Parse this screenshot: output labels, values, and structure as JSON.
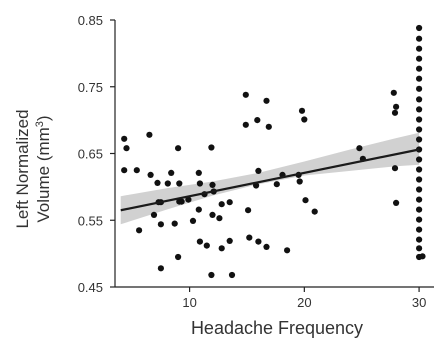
{
  "chart_data": {
    "type": "scatter",
    "title": "",
    "xlabel": "Headache Frequency",
    "ylabel_line1": "Left Normalized",
    "ylabel_line2_prefix": "Volume  (mm",
    "ylabel_sup": "3",
    "ylabel_line2_suffix": ")",
    "xlim": [
      3.5,
      31.3
    ],
    "ylim": [
      0.45,
      0.85
    ],
    "xticks": [
      10,
      20,
      30
    ],
    "xtick_labels": [
      "10",
      "20",
      "30"
    ],
    "yticks": [
      0.45,
      0.55,
      0.65,
      0.75,
      0.85
    ],
    "ytick_labels": [
      "0.45",
      "0.55",
      "0.65",
      "0.75",
      "0.85"
    ],
    "grid": false,
    "colors": {
      "points": "#111111",
      "line": "#1a1a1a",
      "band": "#c9c9c9",
      "axes": "#222222"
    },
    "fit": {
      "x": [
        4,
        30
      ],
      "y": [
        0.565,
        0.656
      ]
    },
    "confidence_band": {
      "x": [
        4,
        8,
        12,
        16,
        20,
        24,
        28,
        30
      ],
      "lower": [
        0.544,
        0.566,
        0.587,
        0.604,
        0.617,
        0.624,
        0.631,
        0.633
      ],
      "upper": [
        0.586,
        0.598,
        0.608,
        0.621,
        0.638,
        0.656,
        0.673,
        0.681
      ]
    },
    "points": [
      [
        4.3,
        0.672
      ],
      [
        4.5,
        0.658
      ],
      [
        4.3,
        0.625
      ],
      [
        5.4,
        0.625
      ],
      [
        5.6,
        0.535
      ],
      [
        6.5,
        0.678
      ],
      [
        6.6,
        0.618
      ],
      [
        6.9,
        0.558
      ],
      [
        7.2,
        0.606
      ],
      [
        7.3,
        0.577
      ],
      [
        7.5,
        0.577
      ],
      [
        7.5,
        0.544
      ],
      [
        7.5,
        0.478
      ],
      [
        8.1,
        0.605
      ],
      [
        8.4,
        0.621
      ],
      [
        8.7,
        0.545
      ],
      [
        9.0,
        0.658
      ],
      [
        9.1,
        0.605
      ],
      [
        9.1,
        0.578
      ],
      [
        9.3,
        0.578
      ],
      [
        9.0,
        0.495
      ],
      [
        9.9,
        0.581
      ],
      [
        10.3,
        0.549
      ],
      [
        10.8,
        0.621
      ],
      [
        10.9,
        0.605
      ],
      [
        10.8,
        0.566
      ],
      [
        10.9,
        0.518
      ],
      [
        11.3,
        0.589
      ],
      [
        11.5,
        0.512
      ],
      [
        11.9,
        0.659
      ],
      [
        12.0,
        0.603
      ],
      [
        12.1,
        0.593
      ],
      [
        12.0,
        0.558
      ],
      [
        11.9,
        0.468
      ],
      [
        12.8,
        0.574
      ],
      [
        12.6,
        0.553
      ],
      [
        12.8,
        0.508
      ],
      [
        13.5,
        0.519
      ],
      [
        13.5,
        0.577
      ],
      [
        13.7,
        0.468
      ],
      [
        14.9,
        0.738
      ],
      [
        14.9,
        0.693
      ],
      [
        15.1,
        0.565
      ],
      [
        15.2,
        0.524
      ],
      [
        15.9,
        0.7
      ],
      [
        16.0,
        0.624
      ],
      [
        15.8,
        0.602
      ],
      [
        16.0,
        0.518
      ],
      [
        16.7,
        0.729
      ],
      [
        16.9,
        0.69
      ],
      [
        16.7,
        0.51
      ],
      [
        17.6,
        0.604
      ],
      [
        18.1,
        0.618
      ],
      [
        18.5,
        0.505
      ],
      [
        19.5,
        0.618
      ],
      [
        19.6,
        0.608
      ],
      [
        19.8,
        0.714
      ],
      [
        20.0,
        0.701
      ],
      [
        20.1,
        0.58
      ],
      [
        20.9,
        0.563
      ],
      [
        24.8,
        0.658
      ],
      [
        25.1,
        0.642
      ],
      [
        27.8,
        0.741
      ],
      [
        28.0,
        0.72
      ],
      [
        27.9,
        0.711
      ],
      [
        27.9,
        0.628
      ],
      [
        28.0,
        0.576
      ],
      [
        30.0,
        0.838
      ],
      [
        30.0,
        0.822
      ],
      [
        30.0,
        0.807
      ],
      [
        30.0,
        0.792
      ],
      [
        30.0,
        0.777
      ],
      [
        30.0,
        0.762
      ],
      [
        30.0,
        0.747
      ],
      [
        30.0,
        0.731
      ],
      [
        30.0,
        0.716
      ],
      [
        30.0,
        0.701
      ],
      [
        30.0,
        0.686
      ],
      [
        30.0,
        0.671
      ],
      [
        30.0,
        0.656
      ],
      [
        30.0,
        0.641
      ],
      [
        30.0,
        0.626
      ],
      [
        30.0,
        0.611
      ],
      [
        30.0,
        0.596
      ],
      [
        30.0,
        0.581
      ],
      [
        30.0,
        0.566
      ],
      [
        30.0,
        0.551
      ],
      [
        30.0,
        0.536
      ],
      [
        30.0,
        0.521
      ],
      [
        30.0,
        0.508
      ],
      [
        30.0,
        0.495
      ],
      [
        30.3,
        0.496
      ]
    ]
  }
}
